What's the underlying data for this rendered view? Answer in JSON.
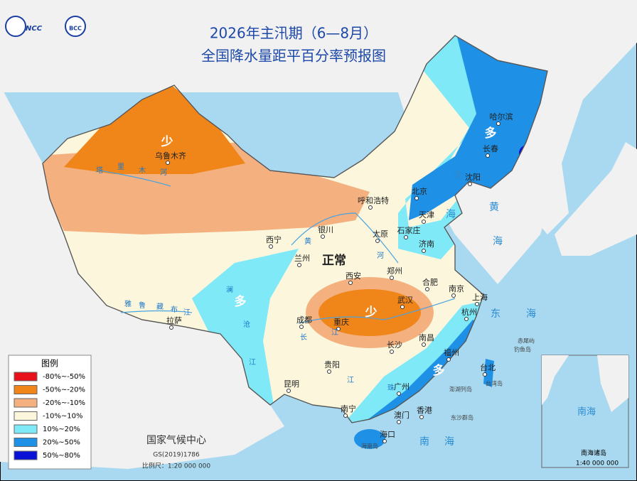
{
  "header": {
    "title_lines": [
      "2026年主汛期（6—8月）",
      "全国降水量距平百分率预报图"
    ],
    "logo_left": "NCC",
    "logo_right": "BCC"
  },
  "legend": {
    "title": "图例",
    "items": [
      {
        "label": "-80%~-50%",
        "color": "#e8101a"
      },
      {
        "label": "-50%~-20%",
        "color": "#f08519"
      },
      {
        "label": "-20%~-10%",
        "color": "#f4b07e"
      },
      {
        "label": "-10%~10%",
        "color": "#fbf6dc"
      },
      {
        "label": "10%~20%",
        "color": "#7fe9f7"
      },
      {
        "label": "20%~50%",
        "color": "#1e90e6"
      },
      {
        "label": "50%~80%",
        "color": "#0a12d8"
      }
    ]
  },
  "region_labels": [
    "少",
    "多",
    "正常",
    "多",
    "少",
    "多"
  ],
  "cities": [
    "乌鲁木齐",
    "哈尔滨",
    "长春",
    "沈阳",
    "北京",
    "天津",
    "石家庄",
    "太原",
    "济南",
    "呼和浩特",
    "银川",
    "西宁",
    "兰州",
    "西安",
    "郑州",
    "合肥",
    "南京",
    "上海",
    "武汉",
    "杭州",
    "成都",
    "重庆",
    "长沙",
    "南昌",
    "福州",
    "贵阳",
    "昆明",
    "拉萨",
    "广州",
    "南宁",
    "澳门",
    "香港",
    "海口",
    "台北"
  ],
  "rivers": [
    "塔",
    "里",
    "木",
    "河",
    "黄",
    "河",
    "雅",
    "鲁",
    "藏",
    "布",
    "江",
    "长",
    "江",
    "澜",
    "沧",
    "江",
    "珠",
    "江"
  ],
  "seas": [
    "渤",
    "海",
    "黄",
    "海",
    "东",
    "海",
    "南",
    "海"
  ],
  "islands": [
    "赤尾屿",
    "钓鱼岛",
    "台湾岛",
    "澎湖列岛",
    "东沙群岛",
    "海南岛"
  ],
  "inset": {
    "sea": "南海",
    "islands": "南海诸岛",
    "scale": "1:40 000 000"
  },
  "footer": {
    "agency": "国家气候中心",
    "map_no": "GS(2019)1786",
    "scale": "比例尺：1:20 000 000"
  }
}
